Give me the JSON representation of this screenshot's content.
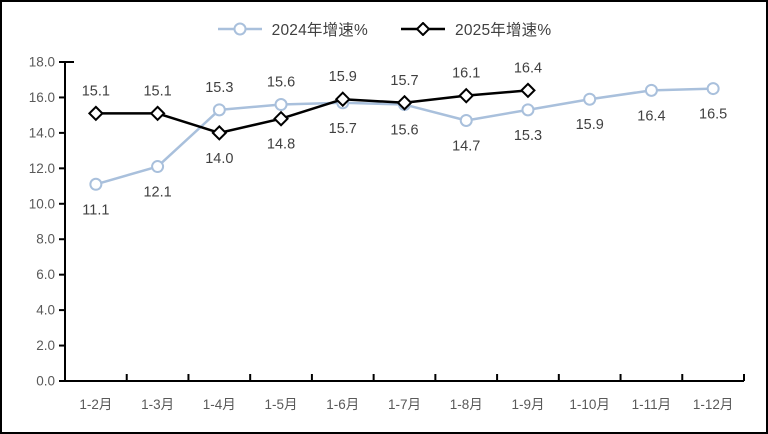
{
  "colors": {
    "series_2024": "#A9C0DC",
    "series_2025": "#000000",
    "data_label": "#404040",
    "axis_line": "#000000",
    "tick_label": "#595959",
    "background": "#FFFFFF",
    "frame_border": "#000000",
    "marker_fill": "#FFFFFF"
  },
  "chart_data": {
    "type": "line",
    "title": "",
    "categories": [
      "1-2月",
      "1-3月",
      "1-4月",
      "1-5月",
      "1-6月",
      "1-7月",
      "1-8月",
      "1-9月",
      "1-10月",
      "1-11月",
      "1-12月"
    ],
    "series": [
      {
        "name": "2024年增速%",
        "color": "#A9C0DC",
        "marker": "circle",
        "values": [
          11.1,
          12.1,
          15.3,
          15.6,
          15.7,
          15.6,
          14.7,
          15.3,
          15.9,
          16.4,
          16.5
        ],
        "label_pos": [
          "below",
          "below",
          "above",
          "above",
          "below",
          "below",
          "below",
          "below",
          "below",
          "below",
          "below"
        ]
      },
      {
        "name": "2025年增速%",
        "color": "#000000",
        "marker": "diamond",
        "values": [
          15.1,
          15.1,
          14.0,
          14.8,
          15.9,
          15.7,
          16.1,
          16.4
        ],
        "label_pos": [
          "above",
          "above",
          "below",
          "below",
          "above",
          "above",
          "above",
          "above"
        ]
      }
    ],
    "ylim": [
      0,
      18
    ],
    "ytick_step": 2,
    "ytick_labels": [
      "0.0",
      "2.0",
      "4.0",
      "6.0",
      "8.0",
      "10.0",
      "12.0",
      "14.0",
      "16.0",
      "18.0"
    ],
    "grid": false,
    "legend_position": "top-center",
    "data_labels_decimals": 1
  }
}
